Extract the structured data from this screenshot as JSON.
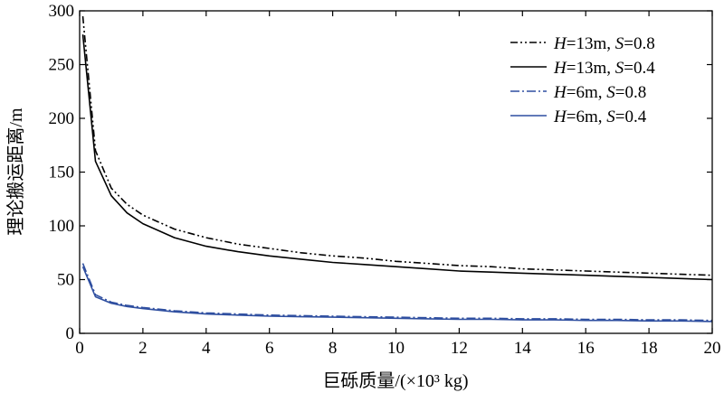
{
  "chart_data": {
    "type": "line",
    "title": "",
    "xlabel": "巨砾质量/(×10³ kg)",
    "ylabel": "理论搬运距离/m",
    "xlim": [
      0,
      20
    ],
    "ylim": [
      0,
      300
    ],
    "xticks": [
      0,
      2,
      4,
      6,
      8,
      10,
      12,
      14,
      16,
      18,
      20
    ],
    "yticks": [
      0,
      50,
      100,
      150,
      200,
      250,
      300
    ],
    "grid": false,
    "legend_position": "top-right",
    "x": [
      0.1,
      0.5,
      1,
      1.5,
      2,
      3,
      4,
      5,
      6,
      7,
      8,
      9,
      10,
      11,
      12,
      13,
      14,
      15,
      16,
      17,
      18,
      19,
      20
    ],
    "series": [
      {
        "name_prefix_var": "H",
        "name_h_value": "=13m, ",
        "name_s_var": "S",
        "name_s_value": "=0.8",
        "color": "#000000",
        "dash": "dashdotdot",
        "values": [
          295,
          170,
          135,
          120,
          110,
          97,
          89,
          83,
          79,
          75,
          72,
          70,
          67,
          65,
          63,
          62,
          60,
          59,
          58,
          57,
          56,
          55,
          54
        ]
      },
      {
        "name_prefix_var": "H",
        "name_h_value": "=13m, ",
        "name_s_var": "S",
        "name_s_value": "=0.4",
        "color": "#000000",
        "dash": "solid",
        "values": [
          278,
          160,
          128,
          112,
          102,
          89,
          81,
          76,
          72,
          69,
          66,
          64,
          62,
          60,
          58,
          57,
          56,
          55,
          54,
          53,
          52,
          51,
          50
        ]
      },
      {
        "name_prefix_var": "H",
        "name_h_value": "=6m, ",
        "name_s_var": "S",
        "name_s_value": "=0.8",
        "color": "#2f4fa0",
        "dash": "dashdot",
        "values": [
          65,
          36,
          29,
          26,
          24,
          21,
          19,
          18,
          17,
          16.5,
          16,
          15.5,
          15,
          14.5,
          14,
          14,
          13.5,
          13.5,
          13,
          13,
          12.5,
          12.5,
          12
        ]
      },
      {
        "name_prefix_var": "H",
        "name_h_value": "=6m, ",
        "name_s_var": "S",
        "name_s_value": "=0.4",
        "color": "#2f4fa0",
        "dash": "solid",
        "values": [
          62,
          34,
          28,
          25,
          23,
          20,
          18,
          17,
          16,
          15.5,
          15,
          14.5,
          14,
          13.5,
          13,
          13,
          12.5,
          12.5,
          12,
          12,
          11.5,
          11.5,
          11
        ]
      }
    ]
  }
}
